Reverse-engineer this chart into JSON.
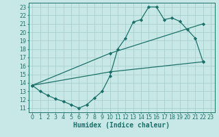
{
  "bg_color": "#c8e8e8",
  "grid_color": "#aad0d0",
  "line_color": "#1a7068",
  "line_width": 0.9,
  "marker": "D",
  "marker_size": 2.2,
  "xlabel": "Humidex (Indice chaleur)",
  "xlabel_fontsize": 7,
  "tick_fontsize": 5.8,
  "xlim": [
    -0.5,
    23.5
  ],
  "ylim": [
    10.5,
    23.5
  ],
  "xticks": [
    0,
    1,
    2,
    3,
    4,
    5,
    6,
    7,
    8,
    9,
    10,
    11,
    12,
    13,
    14,
    15,
    16,
    17,
    18,
    19,
    20,
    21,
    22,
    23
  ],
  "yticks": [
    11,
    12,
    13,
    14,
    15,
    16,
    17,
    18,
    19,
    20,
    21,
    22,
    23
  ],
  "curve1_x": [
    0,
    1,
    2,
    3,
    4,
    5,
    6,
    7,
    8,
    9,
    10,
    11,
    12,
    13,
    14,
    15,
    16,
    17,
    18,
    19,
    20,
    21,
    22
  ],
  "curve1_y": [
    13.7,
    13.0,
    12.5,
    12.1,
    11.8,
    11.4,
    11.0,
    11.4,
    12.2,
    13.0,
    14.8,
    18.0,
    19.3,
    21.2,
    21.5,
    23.0,
    23.0,
    21.5,
    21.7,
    21.3,
    20.3,
    19.3,
    16.5
  ],
  "curve2_x": [
    0,
    10,
    22
  ],
  "curve2_y": [
    13.7,
    17.5,
    21.0
  ],
  "curve3_x": [
    0,
    10,
    22
  ],
  "curve3_y": [
    13.7,
    15.3,
    16.5
  ]
}
